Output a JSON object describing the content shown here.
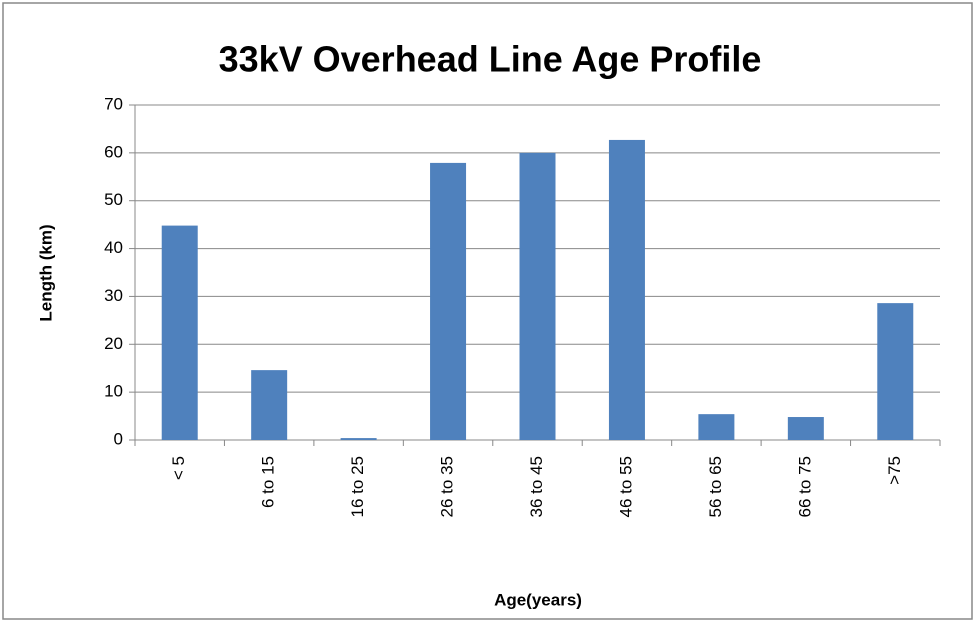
{
  "chart_data": {
    "type": "bar",
    "title": "33kV Overhead Line Age Profile",
    "x_label": "Age(years)",
    "y_label": "Length (km)",
    "categories": [
      "< 5",
      "6 to 15",
      "16 to 25",
      "26 to 35",
      "36 to 45",
      "46 to 55",
      "56 to 65",
      "66 to 75",
      ">75"
    ],
    "values": [
      44.8,
      14.6,
      0.4,
      57.9,
      60,
      62.7,
      5.4,
      4.8,
      28.6
    ],
    "color": "#4f81bd",
    "ylim": [
      0,
      70
    ],
    "yticks": [
      0,
      10,
      20,
      30,
      40,
      50,
      60,
      70
    ],
    "grid": true
  }
}
